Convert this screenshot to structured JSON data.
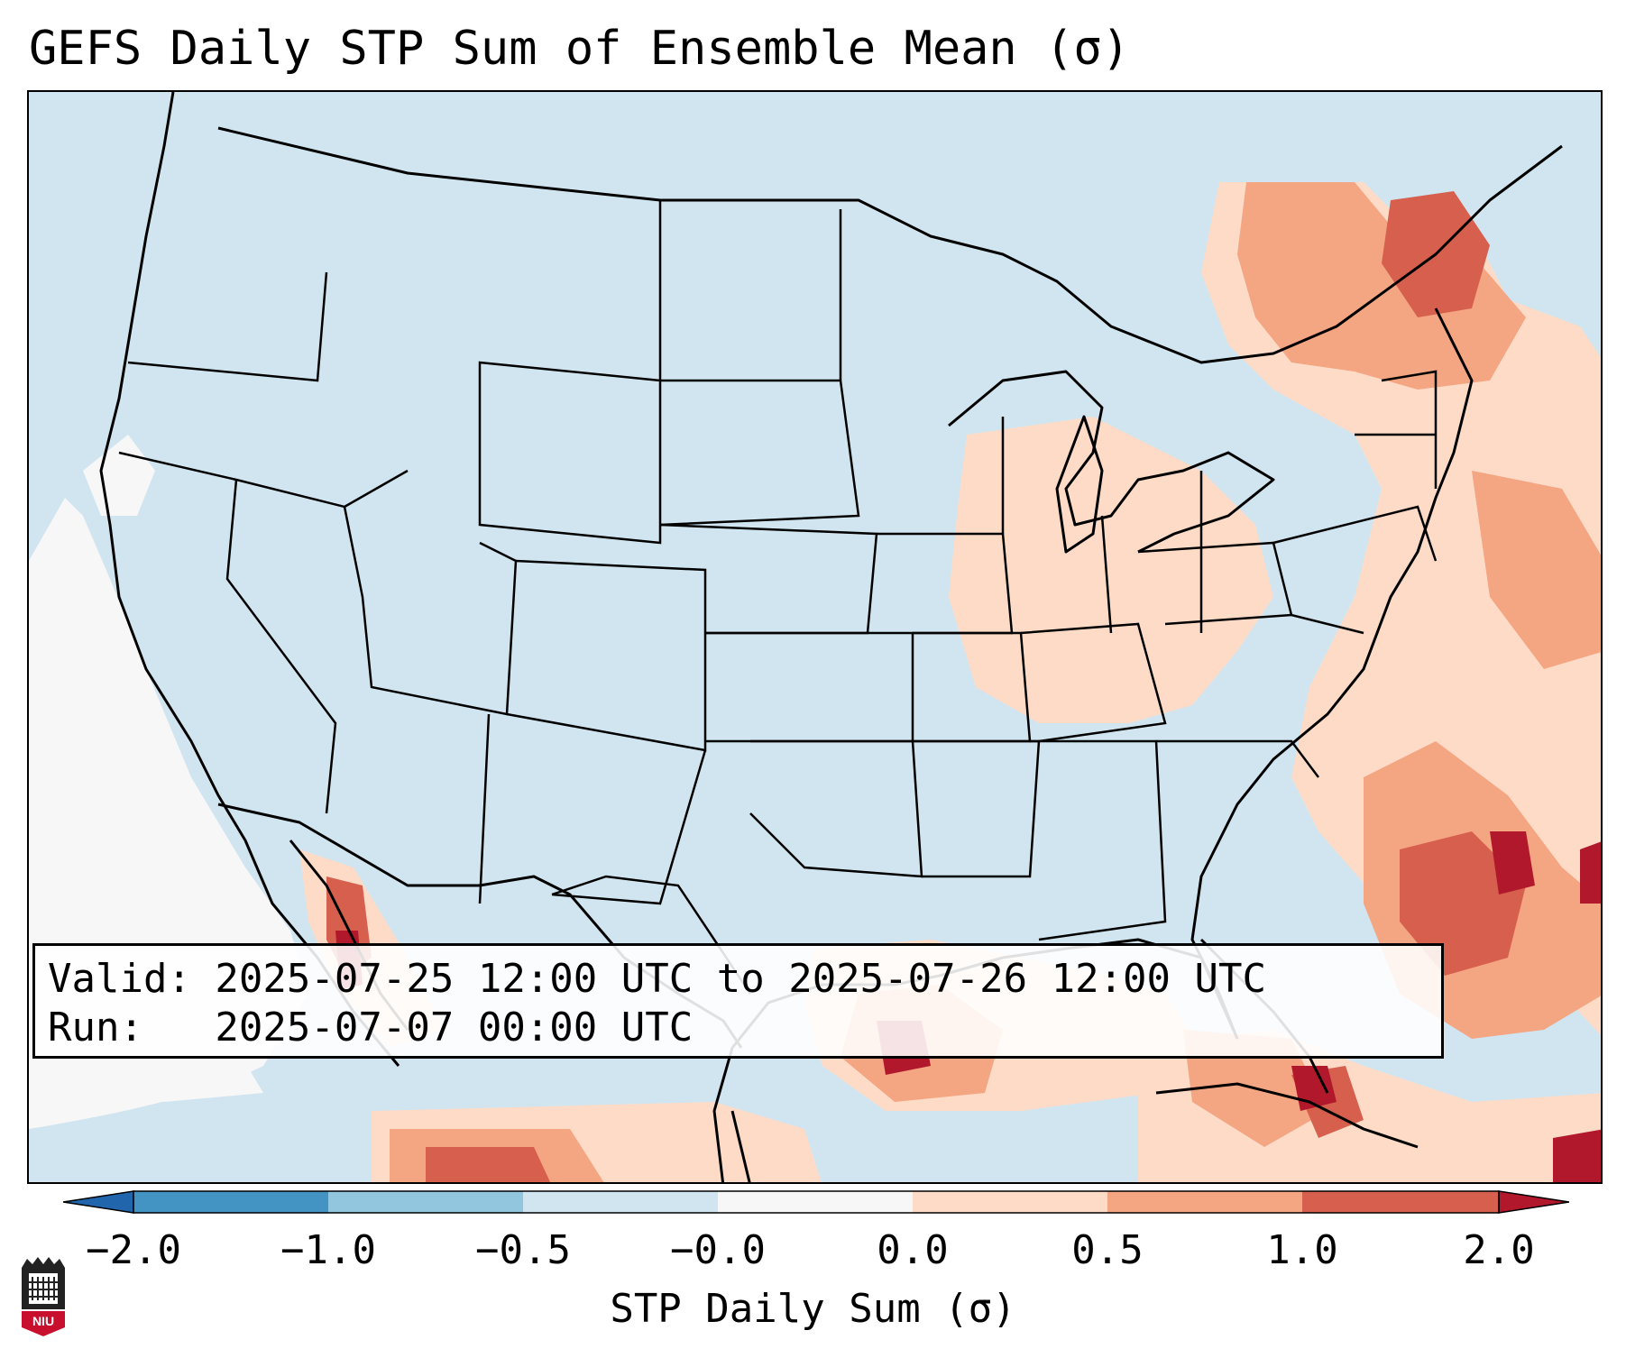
{
  "title": "GEFS Daily STP Sum of Ensemble Mean (σ)",
  "info": {
    "valid": "Valid: 2025-07-25 12:00 UTC to 2025-07-26 12:00 UTC",
    "run": "Run:   2025-07-07 00:00 UTC"
  },
  "colorbar": {
    "label": "STP Daily Sum (σ)",
    "ticks": [
      "−2.0",
      "−1.0",
      "−0.5",
      "−0.0",
      "0.0",
      "0.5",
      "1.0",
      "2.0"
    ],
    "colors": {
      "extend_low": "#2166ac",
      "c1": "#4393c3",
      "c2": "#92c5de",
      "c3": "#d1e5f0",
      "c4": "#f7f7f7",
      "c5": "#fddbc7",
      "c6": "#f4a582",
      "c7": "#d6604d",
      "extend_high": "#b2182b"
    }
  },
  "logo": {
    "text": "NIU"
  }
}
